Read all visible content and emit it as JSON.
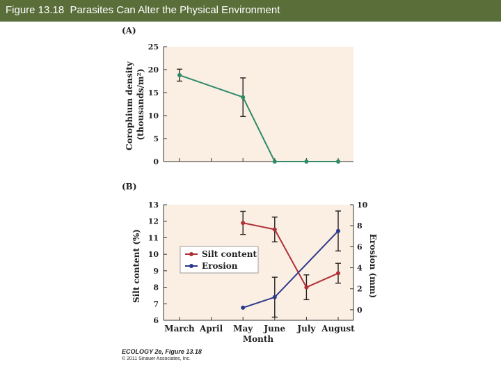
{
  "header": {
    "title": "Figure 13.18  Parasites Can Alter the Physical Environment"
  },
  "colors": {
    "title_bar": "#5a6e3a",
    "green": "#2e8b6a",
    "red": "#b03038",
    "blue": "#2d3a8c",
    "plot_bg": "#fbeee2"
  },
  "chart_data": [
    {
      "type": "line",
      "panel_label": "(A)",
      "categories": [
        "March",
        "April",
        "May",
        "June",
        "July",
        "August"
      ],
      "ylabel": "Corophium density (thousands/m²)",
      "ylim": [
        0,
        25
      ],
      "yticks": [
        0,
        5,
        10,
        15,
        20,
        25
      ],
      "series": [
        {
          "name": "",
          "color": "#2e8b6a",
          "values": [
            18.8,
            null,
            14.0,
            0,
            0,
            0
          ],
          "error": [
            1.3,
            null,
            4.2,
            0,
            0,
            0
          ]
        }
      ]
    },
    {
      "type": "line",
      "panel_label": "(B)",
      "categories": [
        "March",
        "April",
        "May",
        "June",
        "July",
        "August"
      ],
      "xlabel": "Month",
      "ylabel": "Silt content (%)",
      "ylim": [
        6,
        13
      ],
      "yticks": [
        6,
        7,
        8,
        9,
        10,
        11,
        12,
        13
      ],
      "y2label": "Erosion (mm)",
      "y2lim": [
        -1,
        10
      ],
      "y2ticks": [
        0,
        2,
        4,
        6,
        8,
        10
      ],
      "legend": "center-left",
      "series": [
        {
          "name": "Silt content",
          "axis": "left",
          "color": "#b03038",
          "values": [
            null,
            null,
            11.9,
            11.5,
            8.0,
            8.85
          ],
          "error": [
            null,
            null,
            0.7,
            0.75,
            0.75,
            0.6
          ]
        },
        {
          "name": "Erosion",
          "axis": "right",
          "color": "#2d3a8c",
          "values": [
            null,
            null,
            0.2,
            1.2,
            null,
            7.5
          ],
          "error": [
            null,
            null,
            null,
            1.9,
            null,
            1.9
          ]
        }
      ]
    }
  ],
  "credit": {
    "line1": "ECOLOGY 2e, Figure 13.18",
    "line2": "© 2011 Sinauer Associates, Inc."
  }
}
